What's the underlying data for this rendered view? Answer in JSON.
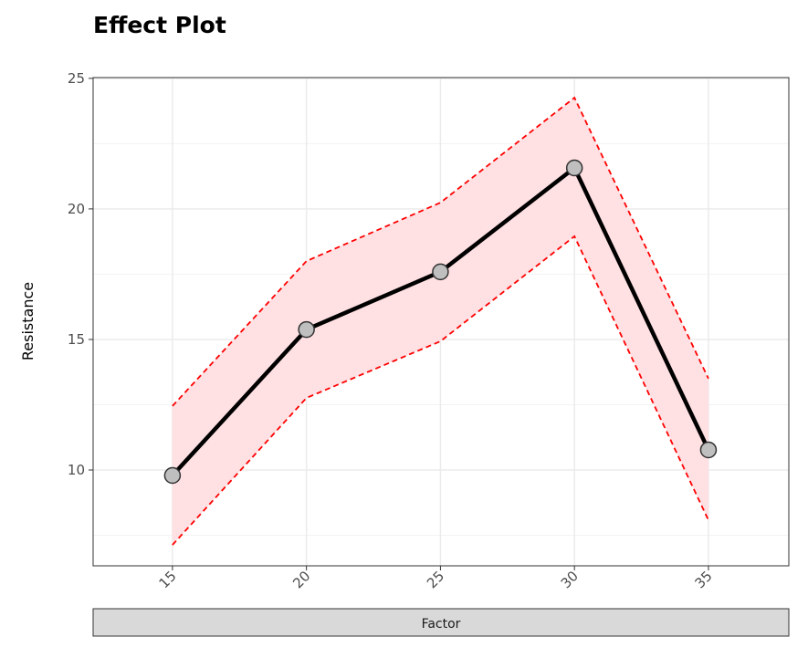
{
  "chart_data": {
    "type": "line",
    "title": "Effect Plot",
    "xlabel": "Factor",
    "ylabel": "Resistance",
    "x": [
      15,
      20,
      25,
      30,
      35
    ],
    "xticks": [
      "15",
      "20",
      "25",
      "30",
      "35"
    ],
    "yticks": [
      10,
      15,
      20,
      25
    ],
    "ytick_labels": [
      "10",
      "15",
      "20",
      "25"
    ],
    "xlim": [
      12.04,
      38.0
    ],
    "ylim": [
      6.33,
      25.03
    ],
    "grid": true,
    "series": [
      {
        "name": "fit",
        "values": [
          9.79,
          15.38,
          17.59,
          21.57,
          10.77
        ]
      },
      {
        "name": "upper",
        "values": [
          12.45,
          18.0,
          20.24,
          24.26,
          13.5
        ]
      },
      {
        "name": "lower",
        "values": [
          7.13,
          12.76,
          14.93,
          18.95,
          8.08
        ]
      }
    ],
    "colors": {
      "line": "#000000",
      "band": "#ffe0e3",
      "bound": "#ff0000",
      "point": "#bfbfbf",
      "strip": "#d9d9d9"
    }
  }
}
